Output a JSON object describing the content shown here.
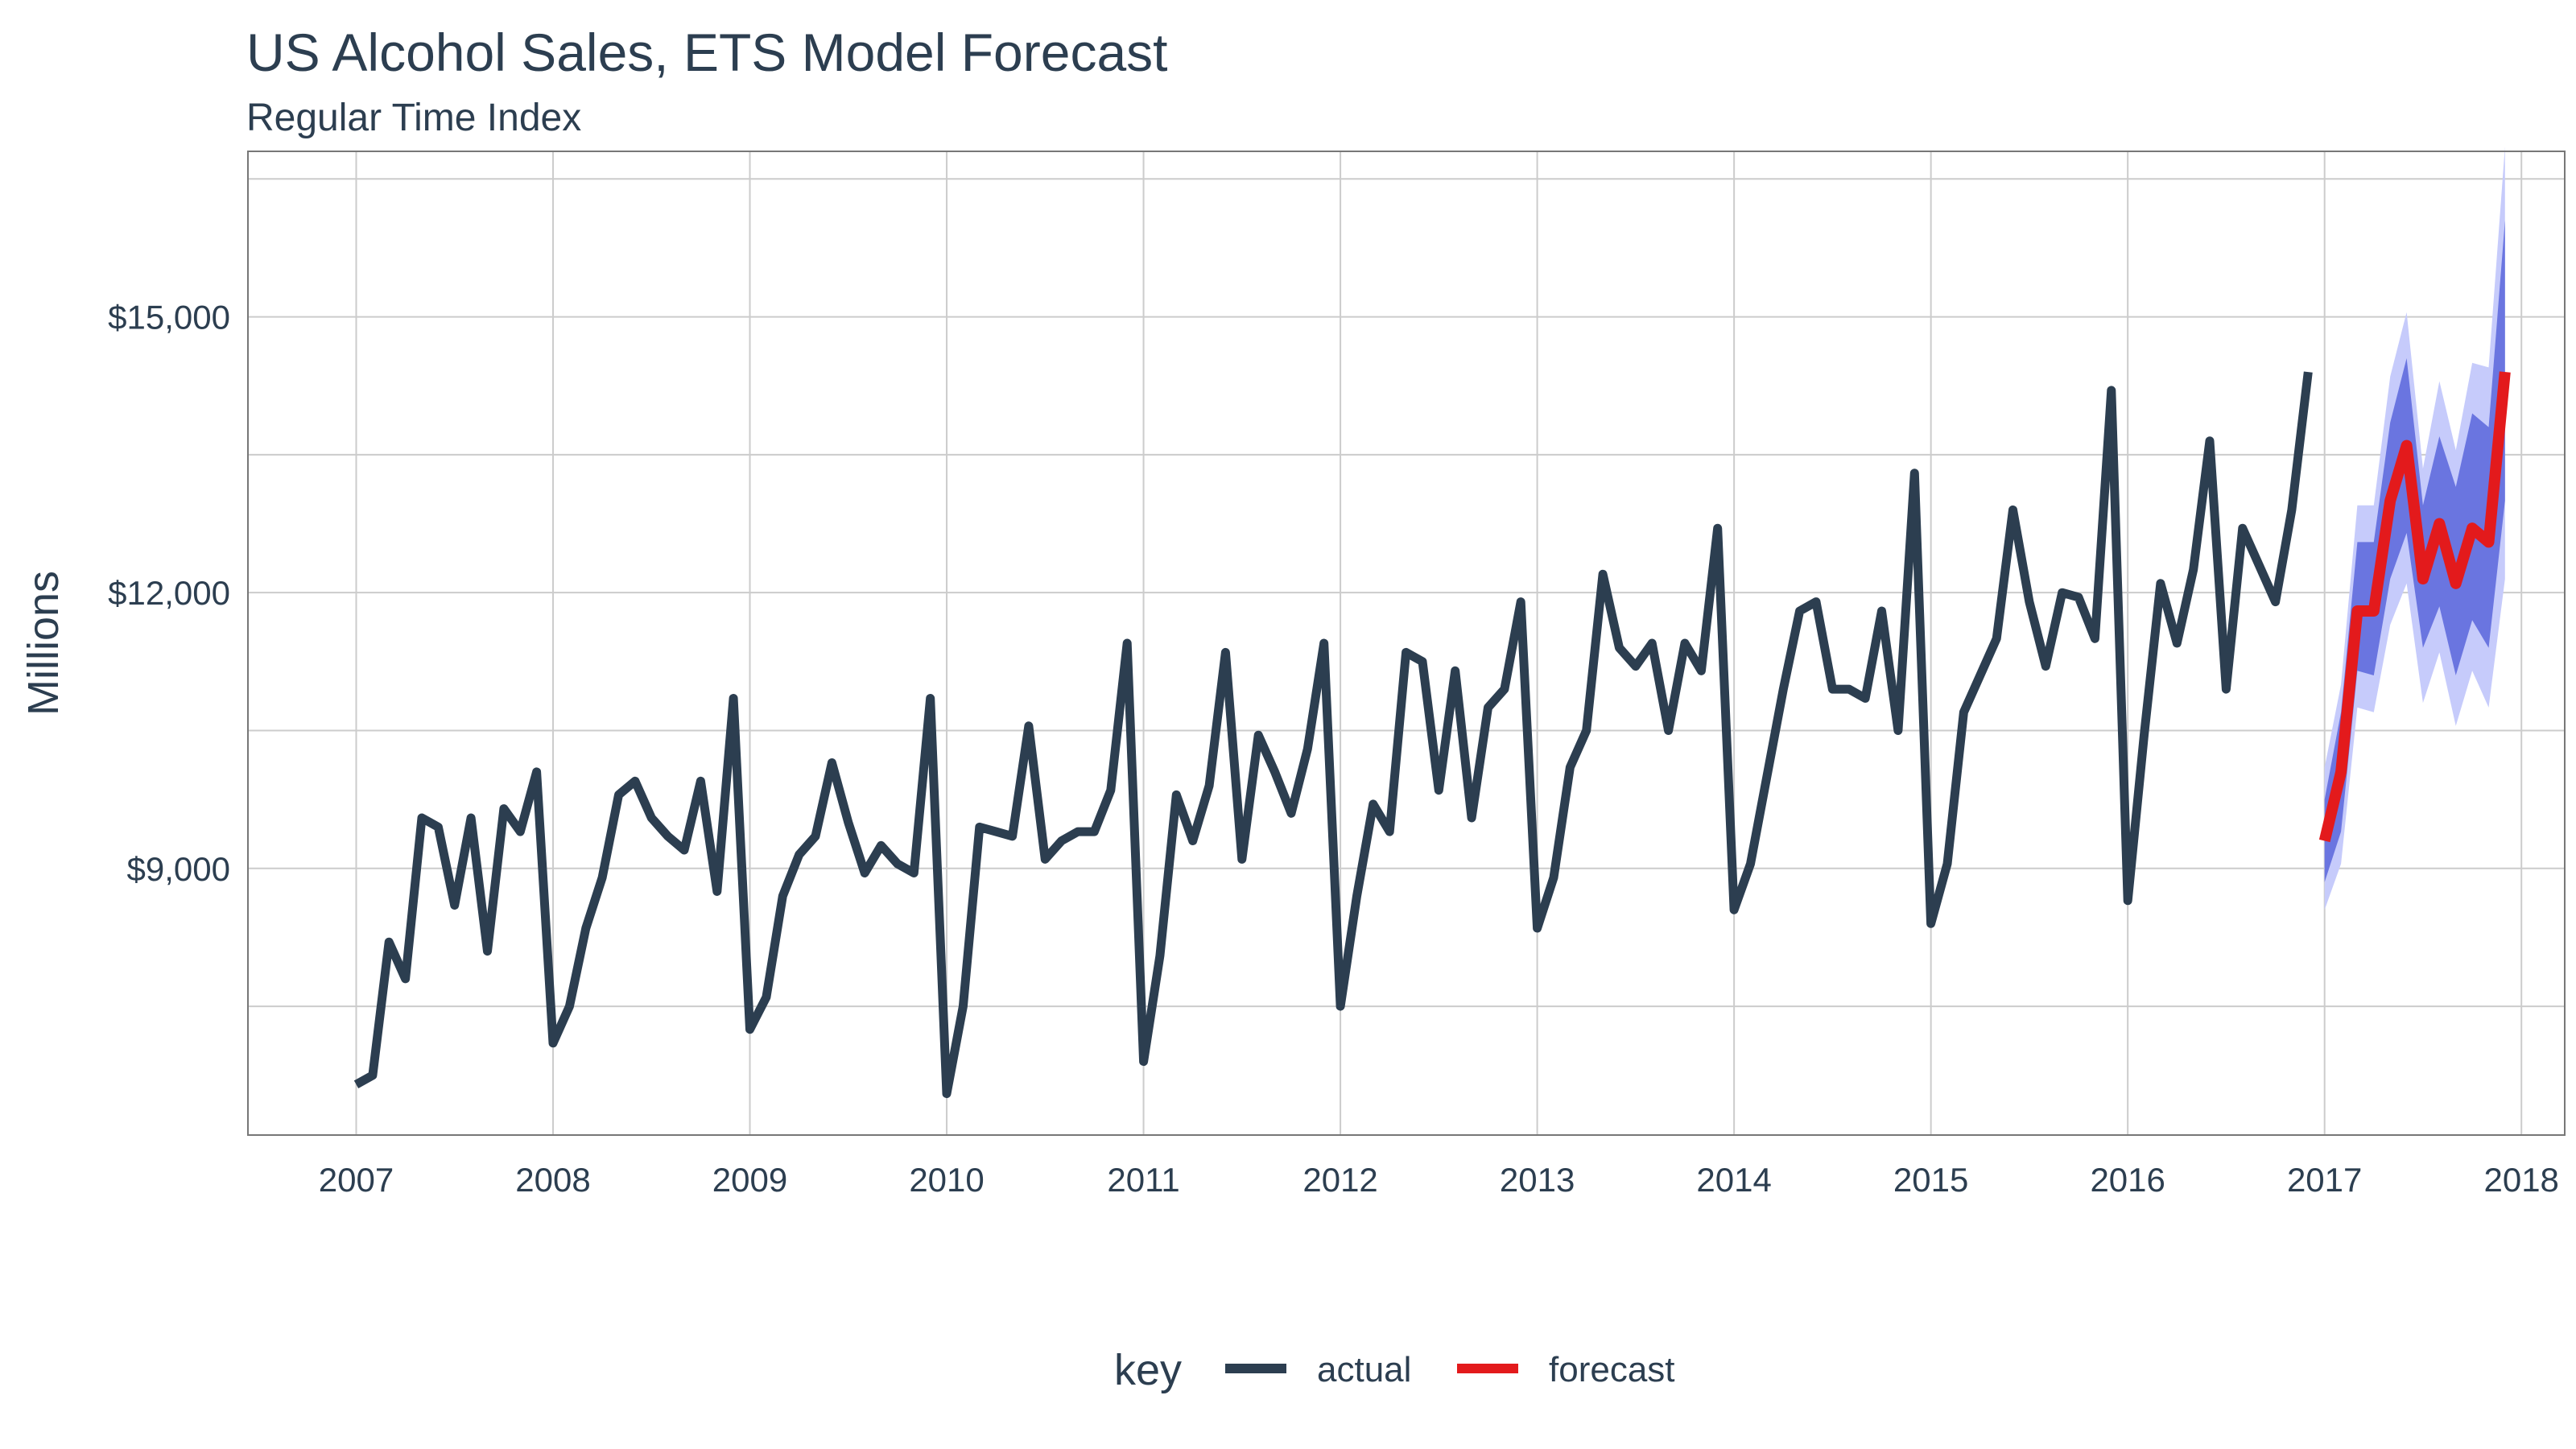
{
  "chart_data": {
    "type": "line",
    "title": "US Alcohol Sales, ETS Model Forecast",
    "subtitle": "Regular Time Index",
    "xlabel": "",
    "ylabel": "Millions",
    "x_range": [
      2006.45,
      2018.22
    ],
    "ylim": [
      6100,
      16800
    ],
    "y_ticks": [
      9000,
      12000,
      15000
    ],
    "y_tick_labels": [
      "$9,000",
      "$12,000",
      "$15,000"
    ],
    "y_minor_grid": [
      7500,
      10500,
      13500,
      16500
    ],
    "x_ticks": [
      2007,
      2008,
      2009,
      2010,
      2011,
      2012,
      2013,
      2014,
      2015,
      2016,
      2017,
      2018
    ],
    "x_tick_labels": [
      "2007",
      "2008",
      "2009",
      "2010",
      "2011",
      "2012",
      "2013",
      "2014",
      "2015",
      "2016",
      "2017",
      "2018"
    ],
    "grid": true,
    "legend": {
      "title": "key",
      "position": "bottom",
      "entries": [
        {
          "label": "actual",
          "color": "#2c3e50"
        },
        {
          "label": "forecast",
          "color": "#e31a1c"
        }
      ]
    },
    "series": [
      {
        "name": "actual",
        "color": "#2c3e50",
        "start_year": 2007,
        "start_month": 1,
        "values": [
          6650,
          6750,
          8200,
          7800,
          9550,
          9450,
          8600,
          9550,
          8100,
          9650,
          9400,
          10050,
          7100,
          7500,
          8350,
          8900,
          9800,
          9950,
          9550,
          9350,
          9200,
          9950,
          8750,
          10850,
          7250,
          7600,
          8700,
          9150,
          9350,
          10150,
          9500,
          8950,
          9250,
          9050,
          8950,
          10850,
          6550,
          7500,
          9450,
          9400,
          9350,
          10550,
          9100,
          9300,
          9400,
          9400,
          9850,
          11450,
          6900,
          8050,
          9800,
          9300,
          9900,
          11350,
          9100,
          10450,
          10050,
          9600,
          10300,
          11450,
          7500,
          8700,
          9700,
          9400,
          11350,
          11250,
          9850,
          11150,
          9550,
          10750,
          10950,
          11900,
          8350,
          8900,
          10100,
          10500,
          12200,
          11400,
          11200,
          11450,
          10500,
          11450,
          11150,
          12700,
          8550,
          9050,
          10000,
          10950,
          11800,
          11900,
          10950,
          10950,
          10850,
          11800,
          10500,
          13300,
          8400,
          9050,
          10700,
          11100,
          11500,
          12900,
          11900,
          11200,
          12000,
          11950,
          11500,
          14200,
          8650,
          10450,
          12100,
          11450,
          12250,
          13650,
          10950,
          12700,
          12300,
          11900,
          12900,
          14400
        ]
      },
      {
        "name": "forecast",
        "color": "#e31a1c",
        "start_year": 2017,
        "start_month": 1,
        "values": [
          9300,
          10050,
          11800,
          11800,
          13000,
          13600,
          12150,
          12750,
          12100,
          12700,
          12550,
          14400
        ],
        "lo80": [
          8850,
          9400,
          11150,
          11100,
          12150,
          12650,
          11400,
          11850,
          11100,
          11700,
          11400,
          13000
        ],
        "hi80": [
          9750,
          10700,
          12550,
          12550,
          13850,
          14550,
          12950,
          13700,
          13150,
          13950,
          13800,
          16050
        ],
        "lo95": [
          8550,
          9050,
          10750,
          10700,
          11650,
          12100,
          10800,
          11350,
          10550,
          11150,
          10750,
          12150
        ],
        "hi95": [
          10100,
          11000,
          12950,
          12950,
          14350,
          15050,
          13350,
          14300,
          13550,
          14500,
          14450,
          16850
        ]
      }
    ],
    "band_colors": {
      "ci80": "#6a75e0",
      "ci95": "#c6cbfb"
    }
  }
}
